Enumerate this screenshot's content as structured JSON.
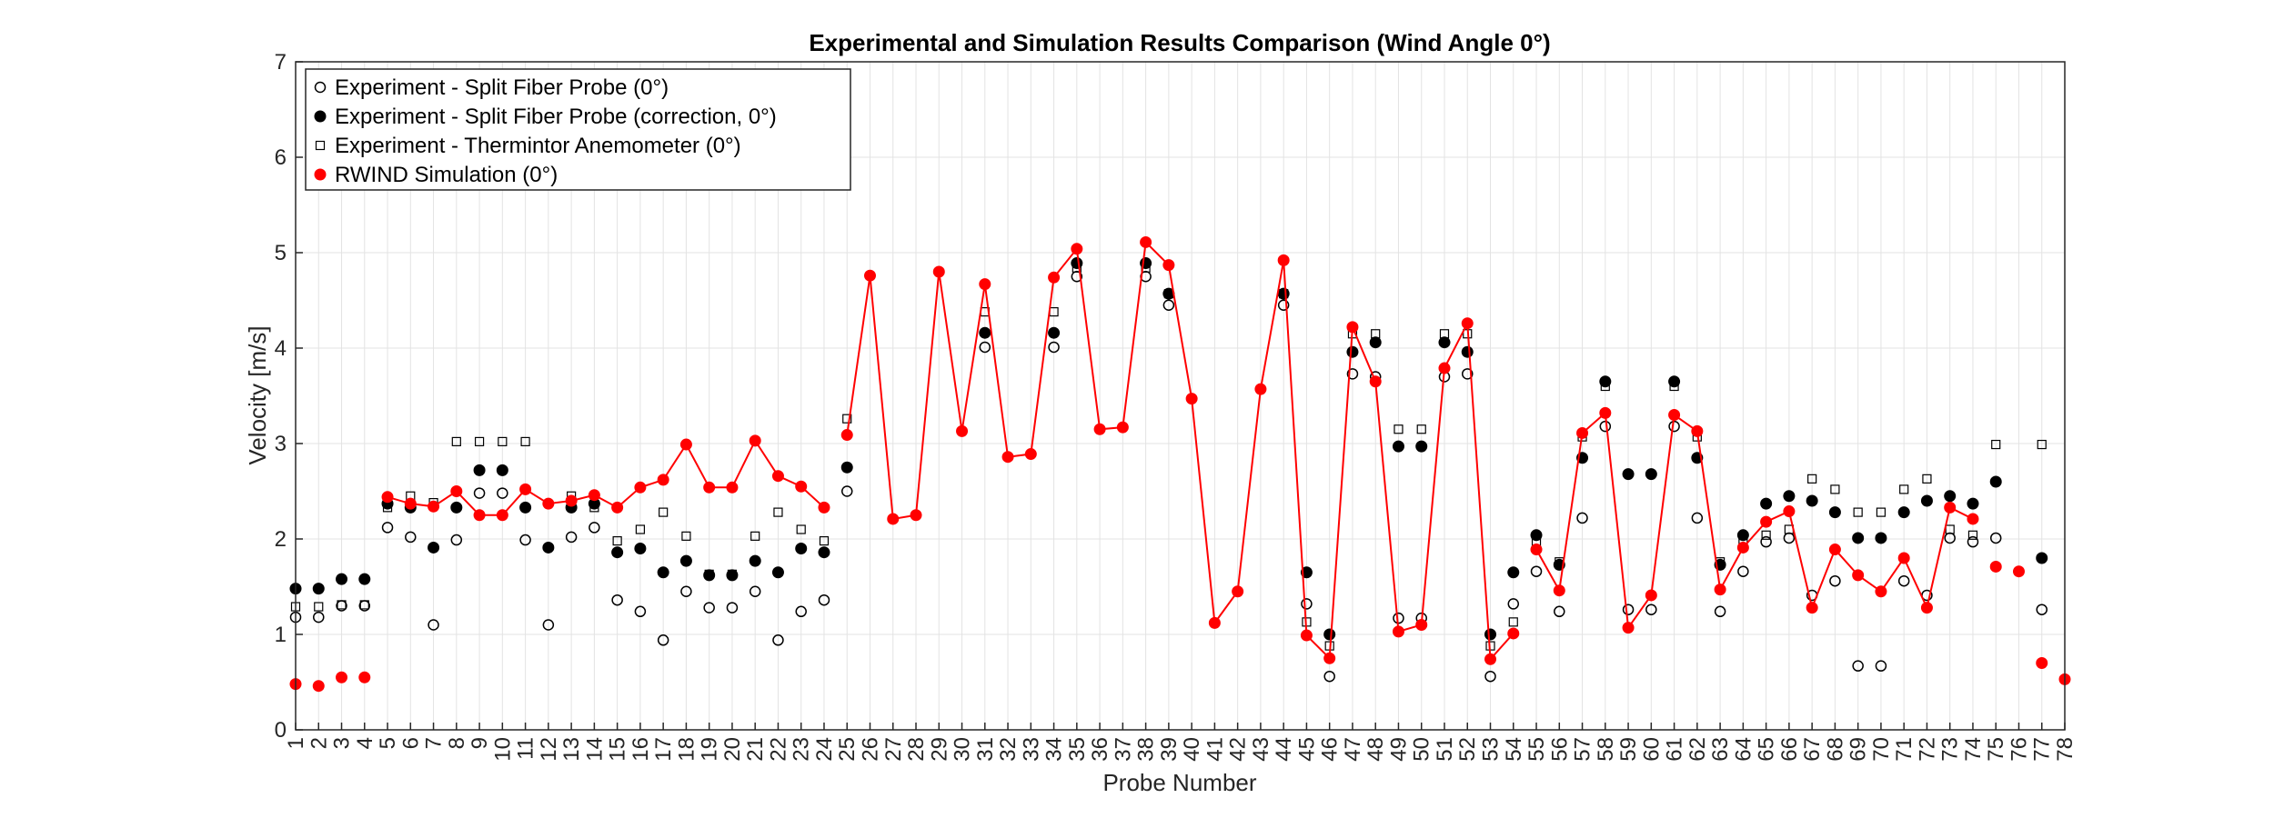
{
  "chart_data": {
    "type": "scatter",
    "title": "Experimental and Simulation Results Comparison (Wind Angle 0°)",
    "xlabel": "Probe Number",
    "ylabel": "Velocity [m/s]",
    "xlim": [
      1,
      78
    ],
    "ylim": [
      0,
      7
    ],
    "yticks": [
      0,
      1,
      2,
      3,
      4,
      5,
      6,
      7
    ],
    "xticks": [
      1,
      2,
      3,
      4,
      5,
      6,
      7,
      8,
      9,
      10,
      11,
      12,
      13,
      14,
      15,
      16,
      17,
      18,
      19,
      20,
      21,
      22,
      23,
      24,
      25,
      26,
      27,
      28,
      29,
      30,
      31,
      32,
      33,
      34,
      35,
      36,
      37,
      38,
      39,
      40,
      41,
      42,
      43,
      44,
      45,
      46,
      47,
      48,
      49,
      50,
      51,
      52,
      53,
      54,
      55,
      56,
      57,
      58,
      59,
      60,
      61,
      62,
      63,
      64,
      65,
      66,
      67,
      68,
      69,
      70,
      71,
      72,
      73,
      74,
      75,
      76,
      77,
      78
    ],
    "grid": true,
    "legend_position": "top-left",
    "series": [
      {
        "name": "Experiment - Split Fiber Probe (0°)",
        "marker": "open-circle",
        "color": "#000000",
        "points": [
          [
            1,
            1.18
          ],
          [
            2,
            1.18
          ],
          [
            3,
            1.3
          ],
          [
            4,
            1.3
          ],
          [
            5,
            2.12
          ],
          [
            6,
            2.02
          ],
          [
            7,
            1.1
          ],
          [
            8,
            1.99
          ],
          [
            9,
            2.48
          ],
          [
            10,
            2.48
          ],
          [
            11,
            1.99
          ],
          [
            12,
            1.1
          ],
          [
            13,
            2.02
          ],
          [
            14,
            2.12
          ],
          [
            15,
            1.36
          ],
          [
            16,
            1.24
          ],
          [
            17,
            0.94
          ],
          [
            18,
            1.45
          ],
          [
            19,
            1.28
          ],
          [
            20,
            1.28
          ],
          [
            21,
            1.45
          ],
          [
            22,
            0.94
          ],
          [
            23,
            1.24
          ],
          [
            24,
            1.36
          ],
          [
            25,
            2.5
          ],
          [
            31,
            4.01
          ],
          [
            34,
            4.01
          ],
          [
            35,
            4.75
          ],
          [
            38,
            4.75
          ],
          [
            39,
            4.45
          ],
          [
            44,
            4.45
          ],
          [
            45,
            1.32
          ],
          [
            46,
            0.56
          ],
          [
            47,
            3.73
          ],
          [
            48,
            3.7
          ],
          [
            49,
            1.17
          ],
          [
            50,
            1.17
          ],
          [
            51,
            3.7
          ],
          [
            52,
            3.73
          ],
          [
            53,
            0.56
          ],
          [
            54,
            1.32
          ],
          [
            55,
            1.66
          ],
          [
            56,
            1.24
          ],
          [
            57,
            2.22
          ],
          [
            58,
            3.18
          ],
          [
            59,
            1.26
          ],
          [
            60,
            1.26
          ],
          [
            61,
            3.18
          ],
          [
            62,
            2.22
          ],
          [
            63,
            1.24
          ],
          [
            64,
            1.66
          ],
          [
            65,
            1.97
          ],
          [
            66,
            2.01
          ],
          [
            67,
            1.41
          ],
          [
            68,
            1.56
          ],
          [
            69,
            0.67
          ],
          [
            70,
            0.67
          ],
          [
            71,
            1.56
          ],
          [
            72,
            1.41
          ],
          [
            73,
            2.01
          ],
          [
            74,
            1.97
          ],
          [
            75,
            2.01
          ],
          [
            77,
            1.26
          ]
        ]
      },
      {
        "name": "Experiment - Split Fiber Probe (correction, 0°)",
        "marker": "filled-circle",
        "color": "#000000",
        "points": [
          [
            1,
            1.48
          ],
          [
            2,
            1.48
          ],
          [
            3,
            1.58
          ],
          [
            4,
            1.58
          ],
          [
            5,
            2.37
          ],
          [
            6,
            2.33
          ],
          [
            7,
            1.91
          ],
          [
            8,
            2.33
          ],
          [
            9,
            2.72
          ],
          [
            10,
            2.72
          ],
          [
            11,
            2.33
          ],
          [
            12,
            1.91
          ],
          [
            13,
            2.33
          ],
          [
            14,
            2.37
          ],
          [
            15,
            1.86
          ],
          [
            16,
            1.9
          ],
          [
            17,
            1.65
          ],
          [
            18,
            1.77
          ],
          [
            19,
            1.62
          ],
          [
            20,
            1.62
          ],
          [
            21,
            1.77
          ],
          [
            22,
            1.65
          ],
          [
            23,
            1.9
          ],
          [
            24,
            1.86
          ],
          [
            25,
            2.75
          ],
          [
            31,
            4.16
          ],
          [
            34,
            4.16
          ],
          [
            35,
            4.89
          ],
          [
            38,
            4.89
          ],
          [
            39,
            4.57
          ],
          [
            44,
            4.57
          ],
          [
            45,
            1.65
          ],
          [
            46,
            1.0
          ],
          [
            47,
            3.96
          ],
          [
            48,
            4.06
          ],
          [
            49,
            2.97
          ],
          [
            50,
            2.97
          ],
          [
            51,
            4.06
          ],
          [
            52,
            3.96
          ],
          [
            53,
            1.0
          ],
          [
            54,
            1.65
          ],
          [
            55,
            2.04
          ],
          [
            56,
            1.73
          ],
          [
            57,
            2.85
          ],
          [
            58,
            3.65
          ],
          [
            59,
            2.68
          ],
          [
            60,
            2.68
          ],
          [
            61,
            3.65
          ],
          [
            62,
            2.85
          ],
          [
            63,
            1.73
          ],
          [
            64,
            2.04
          ],
          [
            65,
            2.37
          ],
          [
            66,
            2.45
          ],
          [
            67,
            2.4
          ],
          [
            68,
            2.28
          ],
          [
            69,
            2.01
          ],
          [
            70,
            2.01
          ],
          [
            71,
            2.28
          ],
          [
            72,
            2.4
          ],
          [
            73,
            2.45
          ],
          [
            74,
            2.37
          ],
          [
            75,
            2.6
          ],
          [
            77,
            1.8
          ]
        ]
      },
      {
        "name": "Experiment - Thermintor Anemometer (0°)",
        "marker": "open-square",
        "color": "#000000",
        "points": [
          [
            1,
            1.29
          ],
          [
            2,
            1.29
          ],
          [
            3,
            1.31
          ],
          [
            4,
            1.31
          ],
          [
            5,
            2.33
          ],
          [
            6,
            2.45
          ],
          [
            7,
            2.38
          ],
          [
            8,
            3.02
          ],
          [
            9,
            3.02
          ],
          [
            10,
            3.02
          ],
          [
            11,
            3.02
          ],
          [
            13,
            2.45
          ],
          [
            14,
            2.33
          ],
          [
            15,
            1.98
          ],
          [
            16,
            2.1
          ],
          [
            17,
            2.28
          ],
          [
            18,
            2.03
          ],
          [
            19,
            1.63
          ],
          [
            20,
            1.63
          ],
          [
            21,
            2.03
          ],
          [
            22,
            2.28
          ],
          [
            23,
            2.1
          ],
          [
            24,
            1.98
          ],
          [
            25,
            3.26
          ],
          [
            31,
            4.38
          ],
          [
            34,
            4.38
          ],
          [
            35,
            4.84
          ],
          [
            38,
            4.84
          ],
          [
            39,
            4.57
          ],
          [
            44,
            4.57
          ],
          [
            45,
            1.13
          ],
          [
            46,
            0.88
          ],
          [
            47,
            4.15
          ],
          [
            48,
            4.15
          ],
          [
            49,
            3.15
          ],
          [
            50,
            3.15
          ],
          [
            51,
            4.15
          ],
          [
            52,
            4.15
          ],
          [
            53,
            0.88
          ],
          [
            54,
            1.13
          ],
          [
            55,
            1.97
          ],
          [
            56,
            1.76
          ],
          [
            57,
            3.07
          ],
          [
            58,
            3.6
          ],
          [
            61,
            3.6
          ],
          [
            62,
            3.07
          ],
          [
            63,
            1.76
          ],
          [
            64,
            1.97
          ],
          [
            65,
            2.04
          ],
          [
            66,
            2.1
          ],
          [
            67,
            2.63
          ],
          [
            68,
            2.52
          ],
          [
            69,
            2.28
          ],
          [
            70,
            2.28
          ],
          [
            71,
            2.52
          ],
          [
            72,
            2.63
          ],
          [
            73,
            2.1
          ],
          [
            74,
            2.04
          ],
          [
            75,
            2.99
          ],
          [
            77,
            2.99
          ]
        ]
      },
      {
        "name": "RWIND Simulation (0°)",
        "marker": "filled-circle",
        "color": "#ff0000",
        "line": true,
        "points": [
          [
            1,
            0.48
          ],
          [
            2,
            0.46
          ],
          [
            3,
            0.55
          ],
          [
            4,
            0.55
          ],
          [
            5,
            2.44
          ],
          [
            6,
            2.37
          ],
          [
            7,
            2.34
          ],
          [
            8,
            2.5
          ],
          [
            9,
            2.25
          ],
          [
            10,
            2.25
          ],
          [
            11,
            2.52
          ],
          [
            12,
            2.37
          ],
          [
            13,
            2.4
          ],
          [
            14,
            2.46
          ],
          [
            15,
            2.33
          ],
          [
            16,
            2.54
          ],
          [
            17,
            2.62
          ],
          [
            18,
            2.99
          ],
          [
            19,
            2.54
          ],
          [
            20,
            2.54
          ],
          [
            21,
            3.03
          ],
          [
            22,
            2.66
          ],
          [
            23,
            2.55
          ],
          [
            24,
            2.33
          ],
          [
            25,
            3.09
          ],
          [
            26,
            4.76
          ],
          [
            27,
            2.21
          ],
          [
            28,
            2.25
          ],
          [
            29,
            4.8
          ],
          [
            30,
            3.13
          ],
          [
            31,
            4.67
          ],
          [
            32,
            2.86
          ],
          [
            33,
            2.89
          ],
          [
            34,
            4.74
          ],
          [
            35,
            5.04
          ],
          [
            36,
            3.15
          ],
          [
            37,
            3.17
          ],
          [
            38,
            5.11
          ],
          [
            39,
            4.87
          ],
          [
            40,
            3.47
          ],
          [
            41,
            1.12
          ],
          [
            42,
            1.45
          ],
          [
            43,
            3.57
          ],
          [
            44,
            4.92
          ],
          [
            45,
            0.99
          ],
          [
            46,
            0.75
          ],
          [
            47,
            4.22
          ],
          [
            48,
            3.65
          ],
          [
            49,
            1.03
          ],
          [
            50,
            1.1
          ],
          [
            51,
            3.79
          ],
          [
            52,
            4.26
          ],
          [
            53,
            0.74
          ],
          [
            54,
            1.01
          ],
          [
            55,
            1.89
          ],
          [
            56,
            1.46
          ],
          [
            57,
            3.11
          ],
          [
            58,
            3.32
          ],
          [
            59,
            1.07
          ],
          [
            60,
            1.41
          ],
          [
            61,
            3.3
          ],
          [
            62,
            3.13
          ],
          [
            63,
            1.47
          ],
          [
            64,
            1.91
          ],
          [
            65,
            2.18
          ],
          [
            66,
            2.29
          ],
          [
            67,
            1.28
          ],
          [
            68,
            1.89
          ],
          [
            69,
            1.62
          ],
          [
            70,
            1.45
          ],
          [
            71,
            1.8
          ],
          [
            72,
            1.28
          ],
          [
            73,
            2.33
          ],
          [
            74,
            2.21
          ],
          [
            75,
            1.71
          ],
          [
            76,
            1.66
          ],
          [
            77,
            0.7
          ],
          [
            78,
            0.53
          ]
        ],
        "line_segments": [
          [
            5,
            24
          ],
          [
            25,
            54
          ],
          [
            55,
            74
          ]
        ]
      }
    ]
  }
}
